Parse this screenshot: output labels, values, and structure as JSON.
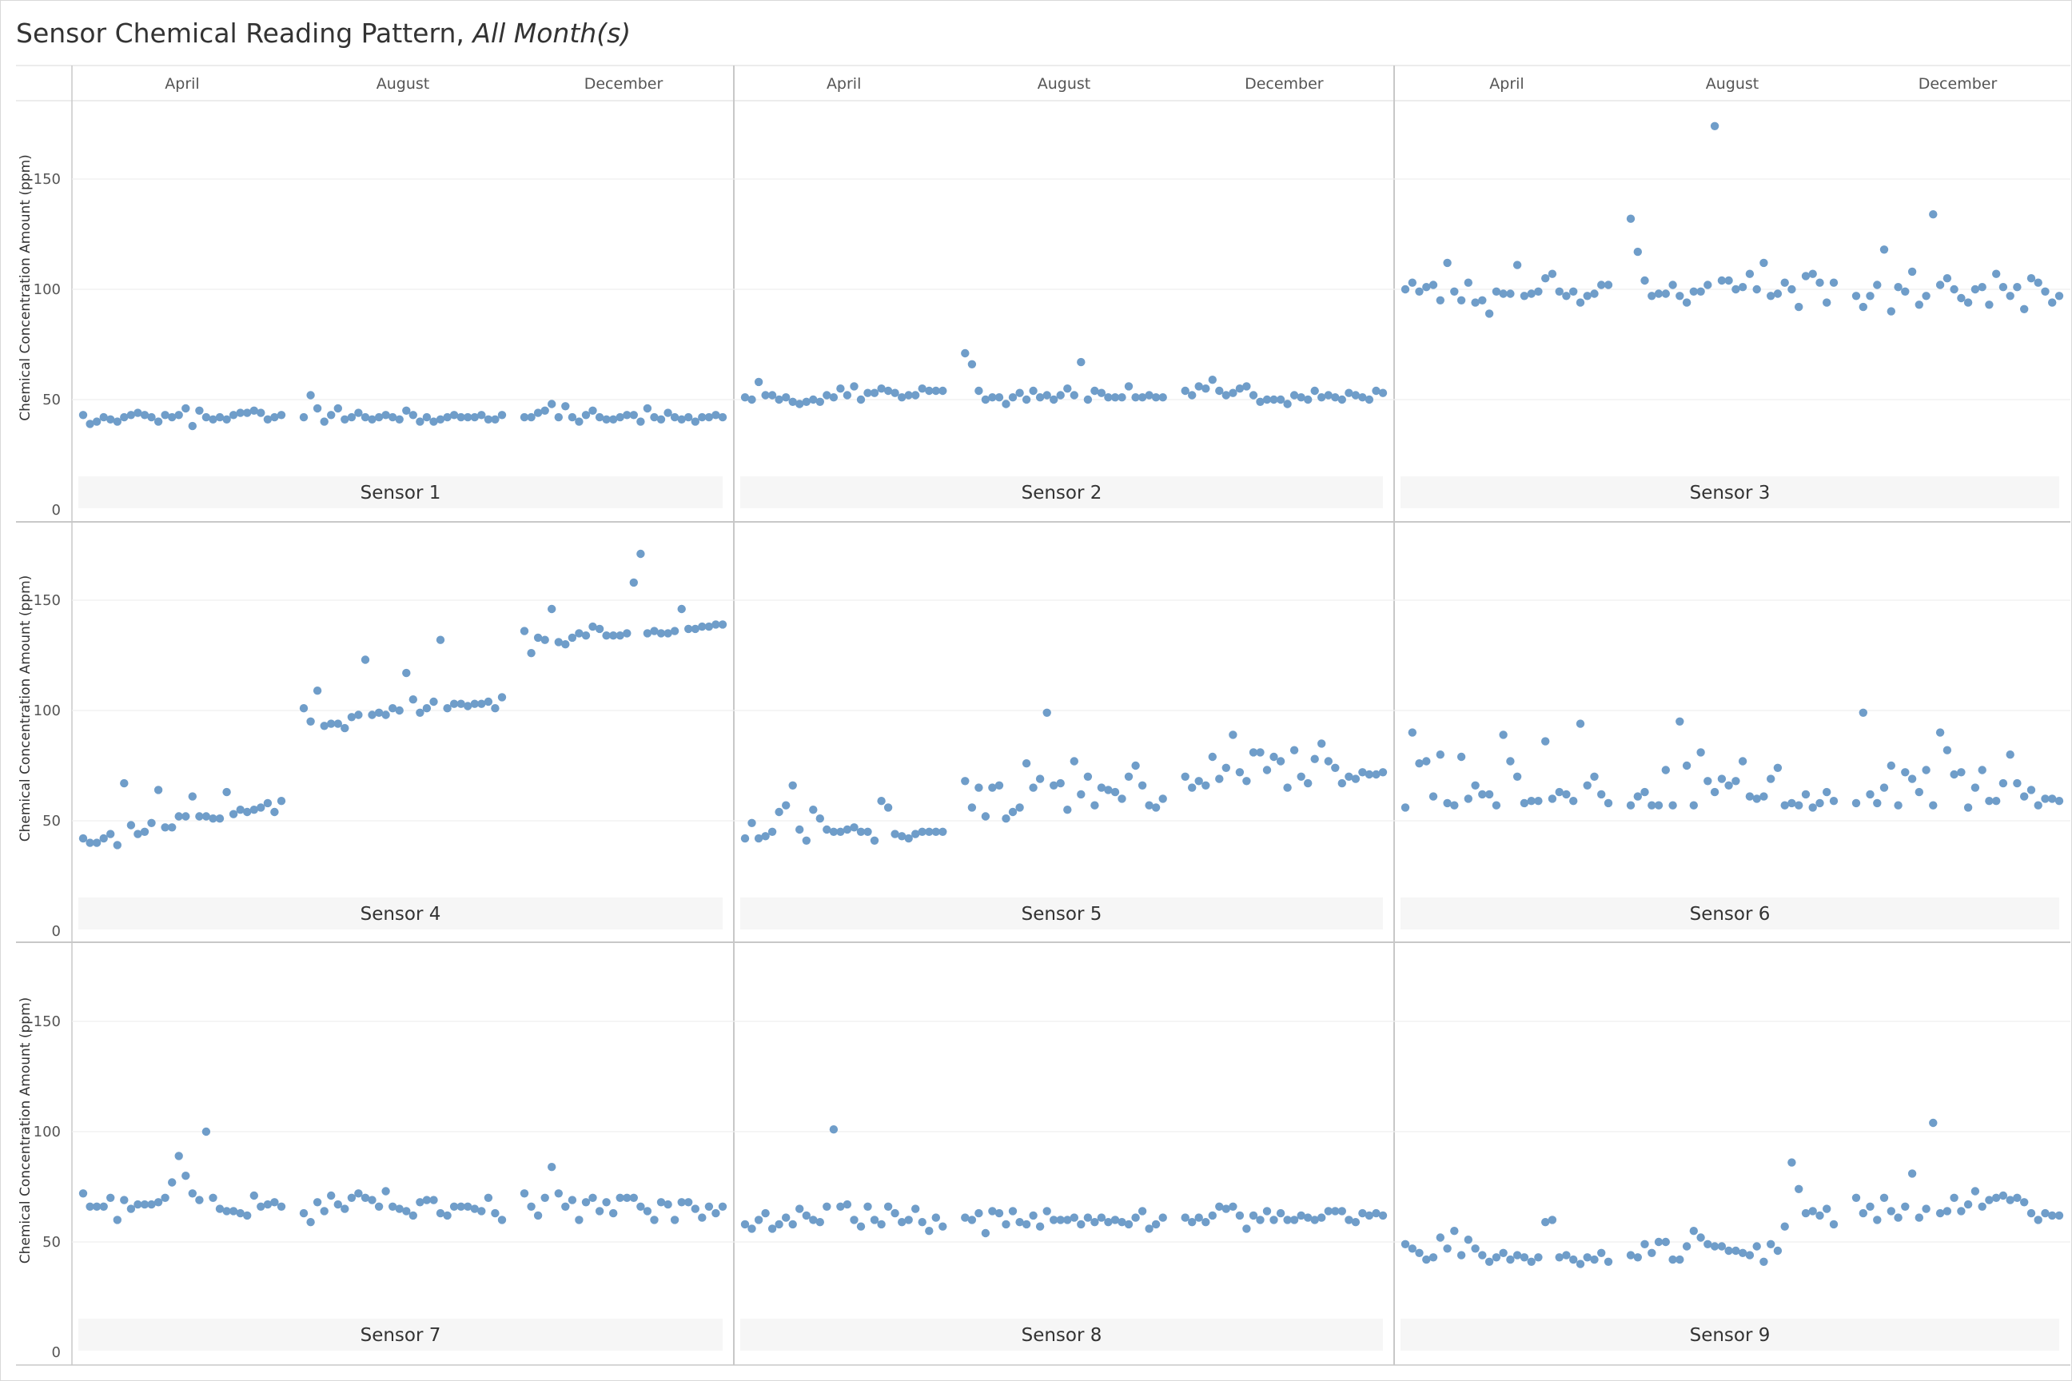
{
  "title": "Sensor Chemical Reading Pattern,",
  "title_italic": "All Month(s)",
  "chart_data": {
    "type": "scatter",
    "layout": "small-multiples-3x3",
    "columns": [
      "April",
      "August",
      "December"
    ],
    "ylabel": "Chemical Concentration Amount (ppm)",
    "yticks": [
      0,
      50,
      100,
      150
    ],
    "ylim": [
      0,
      180
    ],
    "grid": true,
    "marker_color": "#6f9dc9",
    "panels": [
      {
        "name": "Sensor 1",
        "series": [
          {
            "month": "April",
            "values": [
              43,
              39,
              40,
              42,
              41,
              40,
              42,
              43,
              44,
              43,
              42,
              40,
              43,
              42,
              43,
              46,
              38,
              45,
              42,
              41,
              42,
              41,
              43,
              44,
              44,
              45,
              44,
              41,
              42,
              43
            ]
          },
          {
            "month": "August",
            "values": [
              42,
              52,
              46,
              40,
              43,
              46,
              41,
              42,
              44,
              42,
              41,
              42,
              43,
              42,
              41,
              45,
              43,
              40,
              42,
              40,
              41,
              42,
              43,
              42,
              42,
              42,
              43,
              41,
              41,
              43
            ]
          },
          {
            "month": "December",
            "values": [
              42,
              42,
              44,
              45,
              48,
              42,
              47,
              42,
              40,
              43,
              45,
              42,
              41,
              41,
              42,
              43,
              43,
              40,
              46,
              42,
              41,
              44,
              42,
              41,
              42,
              40,
              42,
              42,
              43,
              42
            ]
          }
        ]
      },
      {
        "name": "Sensor 2",
        "series": [
          {
            "month": "April",
            "values": [
              51,
              50,
              58,
              52,
              52,
              50,
              51,
              49,
              48,
              49,
              50,
              49,
              52,
              51,
              55,
              52,
              56,
              50,
              53,
              53,
              55,
              54,
              53,
              51,
              52,
              52,
              55,
              54,
              54,
              54
            ]
          },
          {
            "month": "August",
            "values": [
              71,
              66,
              54,
              50,
              51,
              51,
              48,
              51,
              53,
              50,
              54,
              51,
              52,
              50,
              52,
              55,
              52,
              67,
              50,
              54,
              53,
              51,
              51,
              51,
              56,
              51,
              51,
              52,
              51,
              51
            ]
          },
          {
            "month": "December",
            "values": [
              54,
              52,
              56,
              55,
              59,
              54,
              52,
              53,
              55,
              56,
              52,
              49,
              50,
              50,
              50,
              48,
              52,
              51,
              50,
              54,
              51,
              52,
              51,
              50,
              53,
              52,
              51,
              50,
              54,
              53
            ]
          }
        ]
      },
      {
        "name": "Sensor 3",
        "series": [
          {
            "month": "April",
            "values": [
              100,
              103,
              99,
              101,
              102,
              95,
              112,
              99,
              95,
              103,
              94,
              95,
              89,
              99,
              98,
              98,
              111,
              97,
              98,
              99,
              105,
              107,
              99,
              97,
              99,
              94,
              97,
              98,
              102,
              102
            ]
          },
          {
            "month": "August",
            "values": [
              132,
              117,
              104,
              97,
              98,
              98,
              102,
              97,
              94,
              99,
              99,
              102,
              174,
              104,
              104,
              100,
              101,
              107,
              100,
              112,
              97,
              98,
              103,
              100,
              92,
              106,
              107,
              103,
              94,
              103
            ]
          },
          {
            "month": "December",
            "values": [
              97,
              92,
              97,
              102,
              118,
              90,
              101,
              99,
              108,
              93,
              97,
              134,
              102,
              105,
              100,
              96,
              94,
              100,
              101,
              93,
              107,
              101,
              97,
              101,
              91,
              105,
              103,
              99,
              94,
              97
            ]
          }
        ]
      },
      {
        "name": "Sensor 4",
        "series": [
          {
            "month": "April",
            "values": [
              42,
              40,
              40,
              42,
              44,
              39,
              67,
              48,
              44,
              45,
              49,
              64,
              47,
              47,
              52,
              52,
              61,
              52,
              52,
              51,
              51,
              63,
              53,
              55,
              54,
              55,
              56,
              58,
              54,
              59
            ]
          },
          {
            "month": "August",
            "values": [
              101,
              95,
              109,
              93,
              94,
              94,
              92,
              97,
              98,
              123,
              98,
              99,
              98,
              101,
              100,
              117,
              105,
              99,
              101,
              104,
              132,
              101,
              103,
              103,
              102,
              103,
              103,
              104,
              101,
              106
            ]
          },
          {
            "month": "December",
            "values": [
              136,
              126,
              133,
              132,
              146,
              131,
              130,
              133,
              135,
              134,
              138,
              137,
              134,
              134,
              134,
              135,
              158,
              171,
              135,
              136,
              135,
              135,
              136,
              146,
              137,
              137,
              138,
              138,
              139,
              139
            ]
          }
        ]
      },
      {
        "name": "Sensor 5",
        "series": [
          {
            "month": "April",
            "values": [
              42,
              49,
              42,
              43,
              45,
              54,
              57,
              66,
              46,
              41,
              55,
              51,
              46,
              45,
              45,
              46,
              47,
              45,
              45,
              41,
              59,
              56,
              44,
              43,
              42,
              44,
              45,
              45,
              45,
              45
            ]
          },
          {
            "month": "August",
            "values": [
              68,
              56,
              65,
              52,
              65,
              66,
              51,
              54,
              56,
              76,
              65,
              69,
              99,
              66,
              67,
              55,
              77,
              62,
              70,
              57,
              65,
              64,
              63,
              60,
              70,
              75,
              66,
              57,
              56,
              60
            ]
          },
          {
            "month": "December",
            "values": [
              70,
              65,
              68,
              66,
              79,
              69,
              74,
              89,
              72,
              68,
              81,
              81,
              73,
              79,
              77,
              65,
              82,
              70,
              67,
              78,
              85,
              77,
              74,
              67,
              70,
              69,
              72,
              71,
              71,
              72
            ]
          }
        ]
      },
      {
        "name": "Sensor 6",
        "series": [
          {
            "month": "April",
            "values": [
              56,
              90,
              76,
              77,
              61,
              80,
              58,
              57,
              79,
              60,
              66,
              62,
              62,
              57,
              89,
              77,
              70,
              58,
              59,
              59,
              86,
              60,
              63,
              62,
              59,
              94,
              66,
              70,
              62,
              58
            ]
          },
          {
            "month": "August",
            "values": [
              57,
              61,
              63,
              57,
              57,
              73,
              57,
              95,
              75,
              57,
              81,
              68,
              63,
              69,
              66,
              68,
              77,
              61,
              60,
              61,
              69,
              74,
              57,
              58,
              57,
              62,
              56,
              58,
              63,
              59
            ]
          },
          {
            "month": "December",
            "values": [
              58,
              99,
              62,
              58,
              65,
              75,
              57,
              72,
              69,
              63,
              73,
              57,
              90,
              82,
              71,
              72,
              56,
              65,
              73,
              59,
              59,
              67,
              80,
              67,
              61,
              64,
              57,
              60,
              60,
              59
            ]
          }
        ]
      },
      {
        "name": "Sensor 7",
        "series": [
          {
            "month": "April",
            "values": [
              72,
              66,
              66,
              66,
              70,
              60,
              69,
              65,
              67,
              67,
              67,
              68,
              70,
              77,
              89,
              80,
              72,
              69,
              100,
              70,
              65,
              64,
              64,
              63,
              62,
              71,
              66,
              67,
              68,
              66
            ]
          },
          {
            "month": "August",
            "values": [
              63,
              59,
              68,
              64,
              71,
              67,
              65,
              70,
              72,
              70,
              69,
              66,
              73,
              66,
              65,
              64,
              62,
              68,
              69,
              69,
              63,
              62,
              66,
              66,
              66,
              65,
              64,
              70,
              63,
              60
            ]
          },
          {
            "month": "December",
            "values": [
              72,
              66,
              62,
              70,
              84,
              72,
              66,
              69,
              60,
              68,
              70,
              64,
              68,
              63,
              70,
              70,
              70,
              66,
              64,
              60,
              68,
              67,
              60,
              68,
              68,
              65,
              61,
              66,
              63,
              66
            ]
          }
        ]
      },
      {
        "name": "Sensor 8",
        "series": [
          {
            "month": "April",
            "values": [
              58,
              56,
              60,
              63,
              56,
              58,
              61,
              58,
              65,
              62,
              60,
              59,
              66,
              101,
              66,
              67,
              60,
              57,
              66,
              60,
              58,
              66,
              63,
              59,
              60,
              65,
              59,
              55,
              61,
              57
            ]
          },
          {
            "month": "August",
            "values": [
              61,
              60,
              63,
              54,
              64,
              63,
              58,
              64,
              59,
              58,
              62,
              57,
              64,
              60,
              60,
              60,
              61,
              58,
              61,
              59,
              61,
              59,
              60,
              59,
              58,
              61,
              64,
              56,
              58,
              61
            ]
          },
          {
            "month": "December",
            "values": [
              61,
              59,
              61,
              59,
              62,
              66,
              65,
              66,
              62,
              56,
              62,
              60,
              64,
              60,
              63,
              60,
              60,
              62,
              61,
              60,
              61,
              64,
              64,
              64,
              60,
              59,
              63,
              62,
              63,
              62
            ]
          }
        ]
      },
      {
        "name": "Sensor 9",
        "series": [
          {
            "month": "April",
            "values": [
              49,
              47,
              45,
              42,
              43,
              52,
              47,
              55,
              44,
              51,
              47,
              44,
              41,
              43,
              45,
              42,
              44,
              43,
              41,
              43,
              59,
              60,
              43,
              44,
              42,
              40,
              43,
              42,
              45,
              41
            ]
          },
          {
            "month": "August",
            "values": [
              44,
              43,
              49,
              45,
              50,
              50,
              42,
              42,
              48,
              55,
              52,
              49,
              48,
              48,
              46,
              46,
              45,
              44,
              48,
              41,
              49,
              46,
              57,
              86,
              74,
              63,
              64,
              62,
              65,
              58
            ]
          },
          {
            "month": "December",
            "values": [
              70,
              63,
              66,
              60,
              70,
              64,
              61,
              66,
              81,
              61,
              65,
              104,
              63,
              64,
              70,
              64,
              67,
              73,
              66,
              69,
              70,
              71,
              69,
              70,
              68,
              63,
              60,
              63,
              62,
              62
            ]
          }
        ]
      }
    ]
  }
}
